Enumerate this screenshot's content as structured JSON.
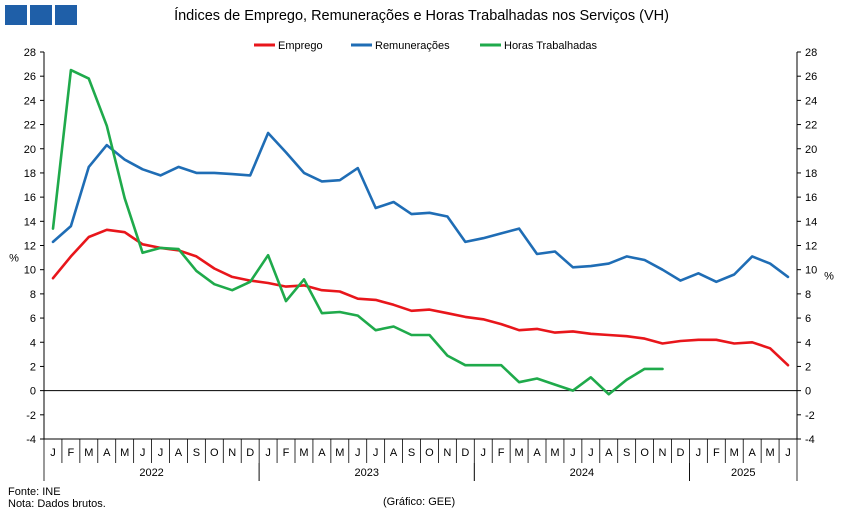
{
  "title": "Índices de Emprego, Remunerações e Horas Trabalhadas nos Serviços (VH)",
  "source": "Fonte: INE",
  "note": "Nota: Dados brutos.",
  "credit": "(Gráfico: GEE)",
  "chart_data": {
    "type": "line",
    "ylabel_left": "%",
    "ylabel_right": "%",
    "ylim": [
      -4,
      28
    ],
    "yticks": [
      -4,
      -2,
      0,
      2,
      4,
      6,
      8,
      10,
      12,
      14,
      16,
      18,
      20,
      22,
      24,
      26,
      28
    ],
    "legend_position": "top",
    "months": [
      "J",
      "F",
      "M",
      "A",
      "M",
      "J",
      "J",
      "A",
      "S",
      "O",
      "N",
      "D",
      "J",
      "F",
      "M",
      "A",
      "M",
      "J",
      "J",
      "A",
      "S",
      "O",
      "N",
      "D",
      "J",
      "F",
      "M",
      "A",
      "M",
      "J",
      "J",
      "A",
      "S",
      "O",
      "N",
      "D",
      "J",
      "F",
      "M",
      "A",
      "M",
      "J"
    ],
    "years": [
      {
        "label": "2022",
        "start": 0,
        "end": 12
      },
      {
        "label": "2023",
        "start": 12,
        "end": 24
      },
      {
        "label": "2024",
        "start": 24,
        "end": 36
      },
      {
        "label": "2025",
        "start": 36,
        "end": 42
      }
    ],
    "series": [
      {
        "name": "Emprego",
        "color": "#e8161b",
        "values": [
          9.3,
          11.1,
          12.7,
          13.3,
          13.1,
          12.1,
          11.8,
          11.6,
          11.1,
          10.1,
          9.4,
          9.1,
          8.9,
          8.6,
          8.7,
          8.3,
          8.2,
          7.6,
          7.5,
          7.1,
          6.6,
          6.7,
          6.4,
          6.1,
          5.9,
          5.5,
          5.0,
          5.1,
          4.8,
          4.9,
          4.7,
          4.6,
          4.5,
          4.3,
          3.9,
          4.1,
          4.2,
          4.2,
          3.9,
          4.0,
          3.5,
          2.1
        ]
      },
      {
        "name": "Remunerações",
        "color": "#1f6db5",
        "values": [
          12.3,
          13.6,
          18.5,
          20.3,
          19.1,
          18.3,
          17.8,
          18.5,
          18.0,
          18.0,
          17.9,
          17.8,
          21.3,
          19.7,
          18.0,
          17.3,
          17.4,
          18.4,
          15.1,
          15.6,
          14.6,
          14.7,
          14.4,
          12.3,
          12.6,
          13.0,
          13.4,
          11.3,
          11.5,
          10.2,
          10.3,
          10.5,
          11.1,
          10.8,
          10.0,
          9.1,
          9.7,
          9.0,
          9.6,
          11.1,
          10.5,
          9.4
        ]
      },
      {
        "name": "Horas Trabalhadas",
        "color": "#1faa4b",
        "values": [
          13.4,
          26.5,
          25.8,
          21.9,
          15.9,
          11.4,
          11.8,
          11.7,
          9.9,
          8.8,
          8.3,
          9.0,
          11.2,
          7.4,
          9.2,
          6.4,
          6.5,
          6.2,
          5.0,
          5.3,
          4.6,
          4.6,
          2.9,
          2.1,
          2.1,
          2.1,
          0.7,
          1.0,
          0.5,
          0.0,
          1.1,
          -0.3,
          0.9,
          1.8,
          1.8,
          null,
          null,
          null,
          null,
          null,
          null,
          null
        ]
      }
    ]
  }
}
